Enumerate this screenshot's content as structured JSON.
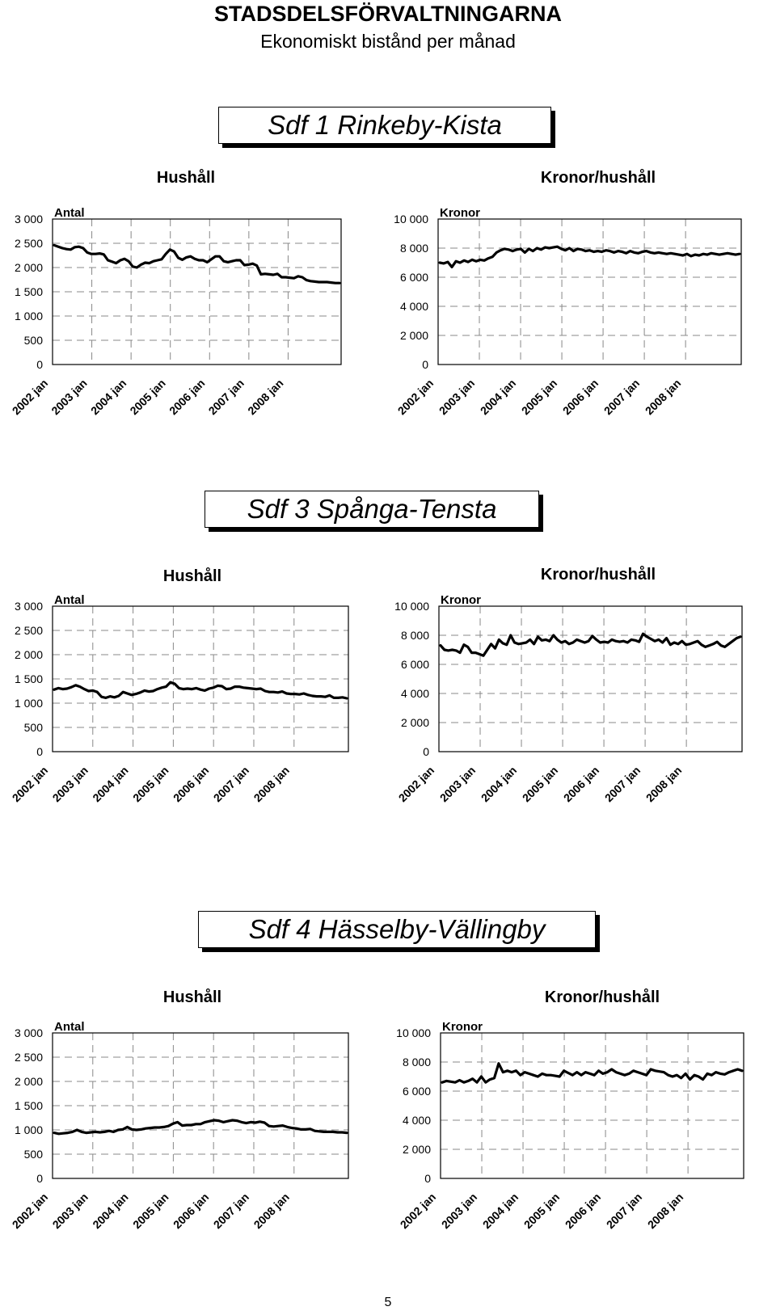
{
  "document": {
    "title": "STADSDELSFÖRVALTNINGARNA",
    "subtitle": "Ekonomiskt bistånd per månad",
    "page_number": "5"
  },
  "sections": [
    {
      "district": "Sdf 1 Rinkeby-Kista",
      "left_heading": "Hushåll",
      "right_heading": "Kronor/hushåll"
    },
    {
      "district": "Sdf 3 Spånga-Tensta",
      "left_heading": "Hushåll",
      "right_heading": "Kronor/hushåll"
    },
    {
      "district": "Sdf 4 Hässelby-Vällingby",
      "left_heading": "Hushåll",
      "right_heading": "Kronor/hushåll"
    }
  ],
  "chart_data": [
    {
      "type": "line",
      "section": 0,
      "unit_label": "Antal",
      "y_ticks": [
        "0",
        "500",
        "1 000",
        "1 500",
        "2 000",
        "2 500",
        "3 000"
      ],
      "ylim": [
        0,
        3000
      ],
      "x_ticks": [
        "2002 jan",
        "2003 jan",
        "2004 jan",
        "2005 jan",
        "2006 jan",
        "2007 jan",
        "2008 jan"
      ],
      "grid": true,
      "series": [
        {
          "values": [
            2460,
            2430,
            2400,
            2380,
            2370,
            2420,
            2430,
            2400,
            2310,
            2280,
            2280,
            2290,
            2270,
            2150,
            2120,
            2090,
            2150,
            2180,
            2130,
            2020,
            2000,
            2060,
            2100,
            2090,
            2130,
            2150,
            2170,
            2280,
            2370,
            2330,
            2200,
            2160,
            2210,
            2230,
            2180,
            2150,
            2150,
            2110,
            2170,
            2230,
            2230,
            2130,
            2110,
            2130,
            2150,
            2150,
            2050,
            2060,
            2080,
            2040,
            1860,
            1870,
            1860,
            1850,
            1870,
            1800,
            1800,
            1790,
            1780,
            1820,
            1800,
            1740,
            1720,
            1710,
            1700,
            1700,
            1700,
            1690,
            1680,
            1680
          ]
        }
      ]
    },
    {
      "type": "line",
      "section": 0,
      "unit_label": "Kronor",
      "y_ticks": [
        "0",
        "2 000",
        "4 000",
        "6 000",
        "8 000",
        "10 000"
      ],
      "ylim": [
        0,
        10000
      ],
      "x_ticks": [
        "2002 jan",
        "2003 jan",
        "2004 jan",
        "2005 jan",
        "2006 jan",
        "2007 jan",
        "2008 jan"
      ],
      "grid": true,
      "series": [
        {
          "values": [
            7000,
            6950,
            7050,
            6700,
            7100,
            7000,
            7150,
            7050,
            7200,
            7100,
            7200,
            7150,
            7300,
            7400,
            7700,
            7850,
            7950,
            7900,
            7800,
            7900,
            7950,
            7700,
            7950,
            7800,
            8000,
            7900,
            8050,
            8000,
            8050,
            8100,
            7950,
            7850,
            8000,
            7800,
            7950,
            7900,
            7800,
            7850,
            7750,
            7800,
            7750,
            7850,
            7800,
            7700,
            7800,
            7750,
            7650,
            7800,
            7700,
            7650,
            7750,
            7800,
            7700,
            7650,
            7700,
            7650,
            7600,
            7650,
            7600,
            7550,
            7500,
            7600,
            7450,
            7550,
            7500,
            7600,
            7550,
            7650,
            7600,
            7550,
            7600,
            7650,
            7600,
            7550,
            7600
          ]
        }
      ]
    },
    {
      "type": "line",
      "section": 1,
      "unit_label": "Antal",
      "y_ticks": [
        "0",
        "500",
        "1 000",
        "1 500",
        "2 000",
        "2 500",
        "3 000"
      ],
      "ylim": [
        0,
        3000
      ],
      "x_ticks": [
        "2002 jan",
        "2003 jan",
        "2004 jan",
        "2005 jan",
        "2006 jan",
        "2007 jan",
        "2008 jan"
      ],
      "grid": true,
      "series": [
        {
          "values": [
            1280,
            1310,
            1290,
            1300,
            1330,
            1370,
            1340,
            1290,
            1250,
            1260,
            1230,
            1130,
            1110,
            1140,
            1120,
            1150,
            1230,
            1200,
            1170,
            1190,
            1220,
            1260,
            1240,
            1250,
            1290,
            1320,
            1340,
            1430,
            1400,
            1310,
            1290,
            1300,
            1290,
            1310,
            1280,
            1260,
            1300,
            1320,
            1360,
            1350,
            1290,
            1300,
            1340,
            1340,
            1320,
            1310,
            1300,
            1290,
            1300,
            1250,
            1230,
            1230,
            1220,
            1240,
            1200,
            1190,
            1190,
            1180,
            1200,
            1170,
            1150,
            1140,
            1140,
            1130,
            1160,
            1110,
            1110,
            1120,
            1100
          ]
        }
      ]
    },
    {
      "type": "line",
      "section": 1,
      "unit_label": "Kronor",
      "y_ticks": [
        "0",
        "2 000",
        "4 000",
        "6 000",
        "8 000",
        "10 000"
      ],
      "ylim": [
        0,
        10000
      ],
      "x_ticks": [
        "2002 jan",
        "2003 jan",
        "2004 jan",
        "2005 jan",
        "2006 jan",
        "2007 jan",
        "2008 jan"
      ],
      "grid": true,
      "series": [
        {
          "values": [
            7300,
            7000,
            6950,
            7000,
            6950,
            6800,
            7350,
            7200,
            6800,
            6800,
            6700,
            6600,
            7000,
            7400,
            7100,
            7700,
            7450,
            7350,
            8000,
            7500,
            7400,
            7450,
            7500,
            7700,
            7400,
            7900,
            7650,
            7700,
            7600,
            8000,
            7700,
            7500,
            7600,
            7400,
            7500,
            7700,
            7600,
            7500,
            7600,
            7950,
            7700,
            7500,
            7550,
            7500,
            7700,
            7600,
            7550,
            7600,
            7500,
            7700,
            7650,
            7550,
            8100,
            7900,
            7750,
            7600,
            7700,
            7500,
            7800,
            7350,
            7500,
            7400,
            7600,
            7350,
            7400,
            7500,
            7600,
            7350,
            7200,
            7300,
            7400,
            7550,
            7300,
            7200,
            7400,
            7600,
            7800,
            7900
          ]
        }
      ]
    },
    {
      "type": "line",
      "section": 2,
      "unit_label": "Antal",
      "y_ticks": [
        "0",
        "500",
        "1 000",
        "1 500",
        "2 000",
        "2 500",
        "3 000"
      ],
      "ylim": [
        0,
        3000
      ],
      "x_ticks": [
        "2002 jan",
        "2003 jan",
        "2004 jan",
        "2005 jan",
        "2006 jan",
        "2007 jan",
        "2008 jan"
      ],
      "grid": true,
      "series": [
        {
          "values": [
            940,
            920,
            930,
            940,
            960,
            1000,
            960,
            940,
            950,
            960,
            950,
            960,
            980,
            960,
            1000,
            1010,
            1060,
            1010,
            1000,
            1010,
            1030,
            1040,
            1050,
            1050,
            1060,
            1080,
            1130,
            1160,
            1090,
            1100,
            1100,
            1120,
            1120,
            1160,
            1180,
            1200,
            1190,
            1160,
            1180,
            1200,
            1190,
            1160,
            1140,
            1160,
            1150,
            1170,
            1150,
            1080,
            1070,
            1080,
            1090,
            1060,
            1040,
            1030,
            1010,
            1010,
            1020,
            980,
            970,
            960,
            960,
            960,
            950,
            950,
            940
          ]
        }
      ]
    },
    {
      "type": "line",
      "section": 2,
      "unit_label": "Kronor",
      "y_ticks": [
        "0",
        "2 000",
        "4 000",
        "6 000",
        "8 000",
        "10 000"
      ],
      "ylim": [
        0,
        10000
      ],
      "x_ticks": [
        "2002 jan",
        "2003 jan",
        "2004 jan",
        "2005 jan",
        "2006 jan",
        "2007 jan",
        "2008 jan"
      ],
      "grid": true,
      "series": [
        {
          "values": [
            6600,
            6700,
            6650,
            6600,
            6750,
            6600,
            6700,
            6850,
            6600,
            7000,
            6600,
            6800,
            6900,
            7900,
            7300,
            7400,
            7300,
            7400,
            7100,
            7300,
            7200,
            7100,
            7000,
            7200,
            7100,
            7100,
            7050,
            7000,
            7400,
            7250,
            7100,
            7300,
            7100,
            7300,
            7200,
            7100,
            7400,
            7200,
            7300,
            7500,
            7300,
            7200,
            7100,
            7200,
            7400,
            7300,
            7200,
            7100,
            7500,
            7400,
            7350,
            7300,
            7100,
            7000,
            7100,
            6900,
            7200,
            6800,
            7100,
            7000,
            6800,
            7200,
            7100,
            7300,
            7200,
            7150,
            7300,
            7400,
            7500,
            7400
          ]
        }
      ]
    }
  ]
}
